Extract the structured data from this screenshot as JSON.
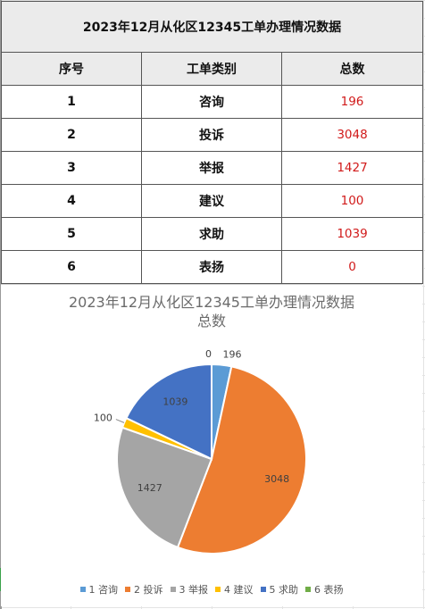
{
  "table": {
    "title": "2023年12月从化区12345工单办理情况数据",
    "headers": {
      "index": "序号",
      "type": "工单类别",
      "total": "总数"
    },
    "rows": [
      {
        "index": "1",
        "type": "咨询",
        "total": "196"
      },
      {
        "index": "2",
        "type": "投诉",
        "total": "3048"
      },
      {
        "index": "3",
        "type": "举报",
        "total": "1427"
      },
      {
        "index": "4",
        "type": "建议",
        "total": "100"
      },
      {
        "index": "5",
        "type": "求助",
        "total": "1039"
      },
      {
        "index": "6",
        "type": "表扬",
        "total": "0"
      }
    ]
  },
  "chart_data": {
    "type": "pie",
    "title": "2023年12月从化区12345工单办理情况数据",
    "subtitle": "总数",
    "categories": [
      "1 咨询",
      "2 投诉",
      "3 举报",
      "4 建议",
      "5 求助",
      "6 表扬"
    ],
    "values": [
      196,
      3048,
      1427,
      100,
      1039,
      0
    ],
    "colors": [
      "#5B9BD5",
      "#ED7D31",
      "#A5A5A5",
      "#FFC000",
      "#4472C4",
      "#70AD47"
    ],
    "start_angle": "12 o'clock, clockwise",
    "legend": "bottom",
    "data_labels": "value"
  }
}
